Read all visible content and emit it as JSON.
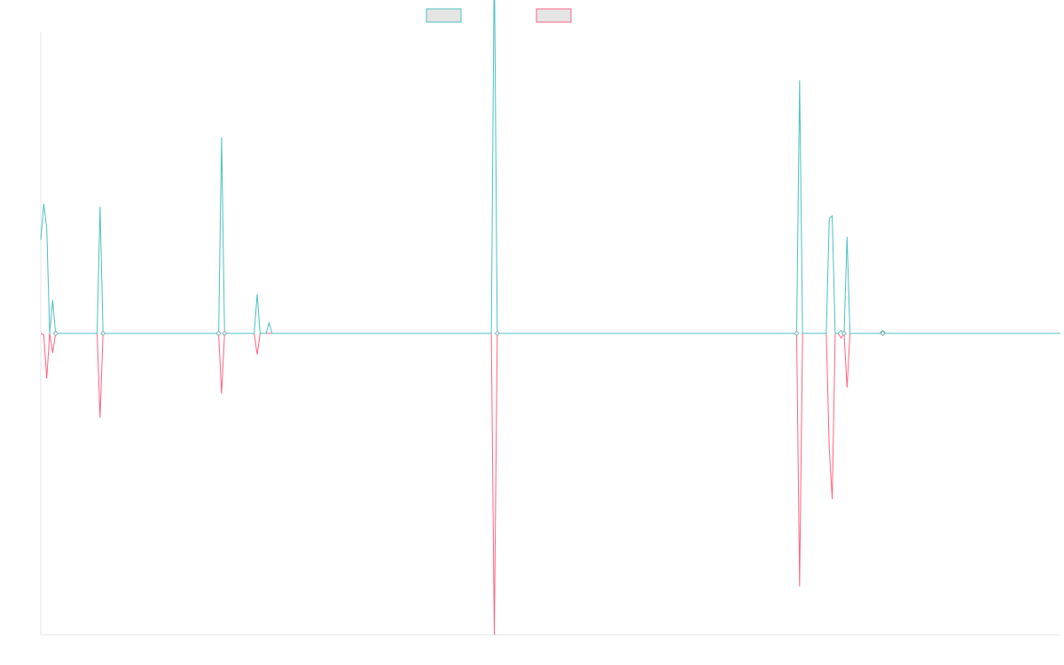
{
  "chart_data": {
    "type": "line",
    "title": "",
    "xlabel": "",
    "ylabel": "",
    "x_count": 345,
    "ylim": [
      -10,
      10
    ],
    "grid": false,
    "legend_position": "top-center",
    "series": [
      {
        "label": "",
        "color": "#4bc0c0",
        "sparse": [
          [
            0,
            3.1
          ],
          [
            1,
            4.3
          ],
          [
            2,
            3.5
          ],
          [
            3,
            0
          ],
          [
            4,
            1.1
          ],
          [
            5,
            0
          ],
          [
            19,
            0
          ],
          [
            20,
            4.2
          ],
          [
            21,
            0
          ],
          [
            60,
            0
          ],
          [
            61,
            6.5
          ],
          [
            62,
            0
          ],
          [
            72,
            0
          ],
          [
            73,
            1.3
          ],
          [
            74,
            0
          ],
          [
            76,
            0
          ],
          [
            77,
            0.35
          ],
          [
            78,
            0
          ],
          [
            152,
            0
          ],
          [
            153,
            12.5
          ],
          [
            154,
            0
          ],
          [
            255,
            0
          ],
          [
            256,
            8.4
          ],
          [
            257,
            0
          ],
          [
            265,
            0
          ],
          [
            266,
            3.8
          ],
          [
            267,
            3.9
          ],
          [
            268,
            0
          ],
          [
            270,
            0.1
          ],
          [
            271,
            0
          ],
          [
            272,
            3.2
          ],
          [
            273,
            0
          ],
          [
            283,
            0
          ],
          [
            284,
            0.1
          ],
          [
            285,
            0
          ]
        ]
      },
      {
        "label": "",
        "color": "#ff6384",
        "sparse": [
          [
            0,
            0
          ],
          [
            1,
            -0.05
          ],
          [
            2,
            -1.5
          ],
          [
            3,
            0
          ],
          [
            4,
            -0.65
          ],
          [
            5,
            0
          ],
          [
            19,
            0
          ],
          [
            20,
            -2.8
          ],
          [
            21,
            0
          ],
          [
            60,
            0
          ],
          [
            61,
            -2.0
          ],
          [
            62,
            0
          ],
          [
            72,
            0
          ],
          [
            73,
            -0.7
          ],
          [
            74,
            0
          ],
          [
            152,
            0
          ],
          [
            153,
            -10.0
          ],
          [
            154,
            0
          ],
          [
            255,
            0
          ],
          [
            256,
            -8.4
          ],
          [
            257,
            0
          ],
          [
            265,
            0
          ],
          [
            266,
            -3.8
          ],
          [
            267,
            -5.5
          ],
          [
            268,
            0
          ],
          [
            270,
            -0.15
          ],
          [
            271,
            0
          ],
          [
            272,
            -1.8
          ],
          [
            273,
            0
          ]
        ]
      }
    ]
  }
}
